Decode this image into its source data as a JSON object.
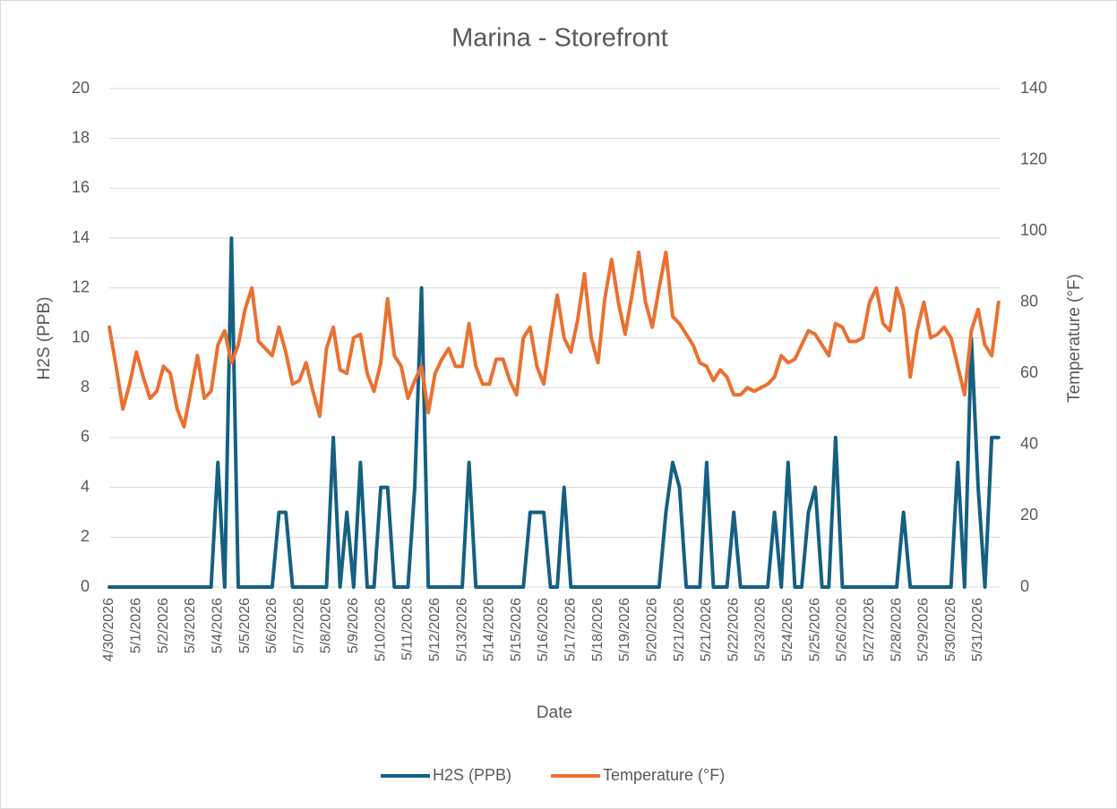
{
  "chart_data": {
    "type": "line",
    "title": "Marina - Storefront",
    "x_label": "Date",
    "y_label": "H2S (PPB)",
    "y2_label": "Temperature (°F)",
    "categories": [
      "4/30/2026",
      null,
      null,
      null,
      "5/1/2026",
      null,
      null,
      null,
      "5/2/2026",
      null,
      null,
      null,
      "5/3/2026",
      null,
      null,
      null,
      "5/4/2026",
      null,
      null,
      null,
      "5/5/2026",
      null,
      null,
      null,
      "5/6/2026",
      null,
      null,
      null,
      "5/7/2026",
      null,
      null,
      null,
      "5/8/2026",
      null,
      null,
      null,
      "5/9/2026",
      null,
      null,
      null,
      "5/10/2026",
      null,
      null,
      null,
      "5/11/2026",
      null,
      null,
      null,
      "5/12/2026",
      null,
      null,
      null,
      "5/13/2026",
      null,
      null,
      null,
      "5/14/2026",
      null,
      null,
      null,
      "5/15/2026",
      null,
      null,
      null,
      "5/16/2026",
      null,
      null,
      null,
      "5/17/2026",
      null,
      null,
      null,
      "5/18/2026",
      null,
      null,
      null,
      "5/19/2026",
      null,
      null,
      null,
      "5/20/2026",
      null,
      null,
      null,
      "5/21/2026",
      null,
      null,
      null,
      "5/21/2026",
      null,
      null,
      null,
      "5/22/2026",
      null,
      null,
      null,
      "5/23/2026",
      null,
      null,
      null,
      "5/24/2026",
      null,
      null,
      null,
      "5/25/2026",
      null,
      null,
      null,
      "5/26/2026",
      null,
      null,
      null,
      "5/27/2026",
      null,
      null,
      null,
      "5/28/2026",
      null,
      null,
      null,
      "5/29/2026",
      null,
      null,
      null,
      "5/30/2026",
      null,
      null,
      null,
      "5/31/2026",
      null,
      null,
      null
    ],
    "series": [
      {
        "name": "H2S (PPB)",
        "color": "#156082",
        "axis": "y",
        "values": [
          0,
          0,
          0,
          0,
          0,
          0,
          0,
          0,
          0,
          0,
          0,
          0,
          0,
          0,
          0,
          0,
          5,
          0,
          14,
          0,
          0,
          0,
          0,
          0,
          0,
          3,
          3,
          0,
          0,
          0,
          0,
          0,
          0,
          6,
          0,
          3,
          0,
          5,
          0,
          0,
          4,
          4,
          0,
          0,
          0,
          4,
          12,
          0,
          0,
          0,
          0,
          0,
          0,
          5,
          0,
          0,
          0,
          0,
          0,
          0,
          0,
          0,
          3,
          3,
          3,
          0,
          0,
          4,
          0,
          0,
          0,
          0,
          0,
          0,
          0,
          0,
          0,
          0,
          0,
          0,
          0,
          0,
          3,
          5,
          4,
          0,
          0,
          0,
          5,
          0,
          0,
          0,
          3,
          0,
          0,
          0,
          0,
          0,
          3,
          0,
          5,
          0,
          0,
          3,
          4,
          0,
          0,
          6,
          0,
          0,
          0,
          0,
          0,
          0,
          0,
          0,
          0,
          3,
          0,
          0,
          0,
          0,
          0,
          0,
          0,
          5,
          0,
          10,
          4,
          0,
          6,
          6
        ]
      },
      {
        "name": "Temperature (°F)",
        "color": "#e97132",
        "axis": "y2",
        "values": [
          73,
          62,
          50,
          57,
          66,
          59,
          53,
          55,
          62,
          60,
          50,
          45,
          55,
          65,
          53,
          55,
          68,
          72,
          63,
          68,
          78,
          84,
          69,
          67,
          65,
          73,
          66,
          57,
          58,
          63,
          55,
          48,
          67,
          73,
          61,
          60,
          70,
          71,
          60,
          55,
          63,
          81,
          65,
          62,
          53,
          58,
          62,
          49,
          60,
          64,
          67,
          62,
          62,
          74,
          62,
          57,
          57,
          64,
          64,
          58,
          54,
          70,
          73,
          62,
          57,
          70,
          82,
          70,
          66,
          75,
          88,
          70,
          63,
          81,
          92,
          80,
          71,
          82,
          94,
          80,
          73,
          84,
          94,
          76,
          74,
          71,
          68,
          63,
          62,
          58,
          61,
          59,
          54,
          54,
          56,
          55,
          56,
          57,
          59,
          65,
          63,
          64,
          68,
          72,
          71,
          68,
          65,
          74,
          73,
          69,
          69,
          70,
          80,
          84,
          74,
          72,
          84,
          78,
          59,
          72,
          80,
          70,
          71,
          73,
          70,
          62,
          54,
          72,
          78,
          68,
          65,
          80
        ]
      }
    ],
    "ylim": [
      0,
      20
    ],
    "yticks": [
      0,
      2,
      4,
      6,
      8,
      10,
      12,
      14,
      16,
      18,
      20
    ],
    "y2lim": [
      0,
      140
    ],
    "y2ticks": [
      0,
      20,
      40,
      60,
      80,
      100,
      120,
      140
    ],
    "grid": true,
    "legend": "bottom"
  }
}
